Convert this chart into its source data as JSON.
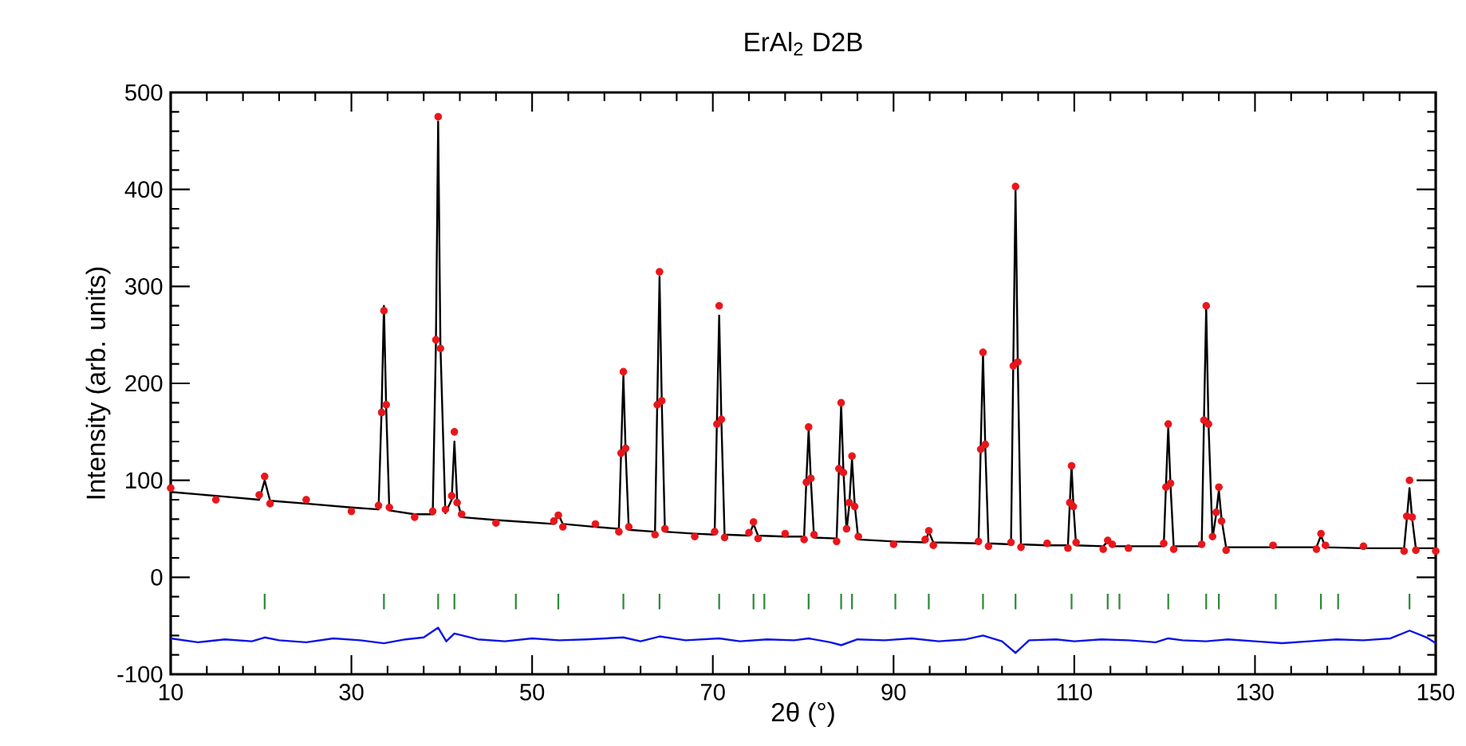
{
  "chart_data": {
    "type": "scatter",
    "title": "ErAl$_{2}$ D2B",
    "xlabel": "2θ (°)",
    "ylabel": "Intensity (arb. units)",
    "xlim": [
      10,
      150
    ],
    "ylim": [
      -100,
      500
    ],
    "xticks": [
      10,
      30,
      50,
      70,
      90,
      110,
      130,
      150
    ],
    "yticks": [
      -100,
      0,
      100,
      200,
      300,
      400,
      500
    ],
    "grid": false,
    "series": [
      {
        "marker": "circle",
        "color": "#e8161b",
        "x": [
          10,
          15,
          19.8,
          20.4,
          21,
          25,
          30,
          33,
          33.35,
          33.6,
          33.85,
          34.2,
          37,
          39,
          39.35,
          39.6,
          39.85,
          40.4,
          41.1,
          41.4,
          41.7,
          42.2,
          46,
          52.4,
          52.9,
          53.4,
          57,
          59.6,
          59.85,
          60.1,
          60.35,
          60.7,
          63.6,
          63.85,
          64.1,
          64.35,
          64.7,
          68,
          70.2,
          70.45,
          70.7,
          70.95,
          71.3,
          74,
          74.5,
          75,
          78,
          80.1,
          80.35,
          80.6,
          80.85,
          81.2,
          83.7,
          83.95,
          84.2,
          84.45,
          84.8,
          85.1,
          85.4,
          85.7,
          86.1,
          90,
          93.5,
          93.9,
          94.4,
          99.4,
          99.65,
          99.9,
          100.15,
          100.5,
          103,
          103.25,
          103.5,
          103.75,
          104.1,
          107,
          109.3,
          109.5,
          109.7,
          109.9,
          110.2,
          113.2,
          113.7,
          114.2,
          116,
          119.9,
          120.15,
          120.4,
          120.65,
          121,
          124.1,
          124.35,
          124.6,
          124.85,
          125.3,
          125.7,
          126,
          126.3,
          126.8,
          132,
          136.8,
          137.3,
          137.8,
          142,
          146.5,
          146.8,
          147.1,
          147.4,
          147.8,
          150
        ],
        "values": [
          92,
          80,
          85,
          104,
          76,
          80,
          68,
          74,
          170,
          275,
          178,
          72,
          62,
          68,
          245,
          475,
          236,
          70,
          84,
          150,
          77,
          65,
          56,
          58,
          64,
          52,
          55,
          47,
          128,
          212,
          133,
          52,
          44,
          178,
          315,
          182,
          50,
          42,
          47,
          158,
          280,
          163,
          41,
          46,
          57,
          40,
          45,
          39,
          98,
          155,
          102,
          44,
          37,
          112,
          180,
          108,
          50,
          77,
          125,
          73,
          42,
          34,
          39,
          48,
          33,
          37,
          132,
          232,
          137,
          32,
          36,
          218,
          403,
          222,
          31,
          35,
          30,
          77,
          115,
          73,
          36,
          29,
          38,
          34,
          30,
          35,
          93,
          158,
          97,
          29,
          34,
          162,
          280,
          158,
          42,
          67,
          93,
          58,
          28,
          33,
          29,
          45,
          33,
          32,
          27,
          63,
          100,
          62,
          28,
          27
        ]
      },
      {
        "type": "line",
        "color": "#000000",
        "x": [
          10,
          15,
          19.8,
          20.4,
          21,
          25,
          30,
          33,
          33.35,
          33.6,
          33.85,
          34.2,
          37,
          39,
          39.35,
          39.6,
          39.85,
          40.4,
          41.1,
          41.4,
          41.7,
          42.2,
          46,
          52.4,
          52.9,
          53.4,
          57,
          59.6,
          59.85,
          60.1,
          60.35,
          60.7,
          63.6,
          63.85,
          64.1,
          64.35,
          64.7,
          68,
          70.2,
          70.45,
          70.7,
          70.95,
          71.3,
          74,
          74.5,
          75,
          78,
          80.1,
          80.35,
          80.6,
          80.85,
          81.2,
          83.7,
          83.95,
          84.2,
          84.45,
          84.8,
          85.1,
          85.4,
          85.7,
          86.1,
          90,
          93.5,
          93.9,
          94.4,
          99.4,
          99.65,
          99.9,
          100.15,
          100.5,
          103,
          103.25,
          103.5,
          103.75,
          104.1,
          107,
          109.3,
          109.5,
          109.7,
          109.9,
          110.2,
          113.2,
          113.7,
          114.2,
          116,
          119.9,
          120.15,
          120.4,
          120.65,
          121,
          124.1,
          124.35,
          124.6,
          124.85,
          125.3,
          125.7,
          126,
          126.3,
          126.8,
          132,
          136.8,
          137.3,
          137.8,
          142,
          146.5,
          146.8,
          147.1,
          147.4,
          147.8,
          150
        ],
        "values": [
          88,
          84,
          80,
          100,
          79,
          76,
          72,
          70,
          175,
          280,
          175,
          69,
          65,
          65,
          240,
          470,
          240,
          66,
          80,
          140,
          80,
          62,
          59,
          55,
          65,
          55,
          52,
          50,
          130,
          208,
          130,
          49,
          47,
          180,
          310,
          180,
          47,
          45,
          44,
          160,
          270,
          160,
          44,
          43,
          55,
          43,
          42,
          42,
          100,
          152,
          100,
          41,
          40,
          110,
          178,
          110,
          48,
          75,
          122,
          75,
          39,
          37,
          36,
          47,
          36,
          35,
          135,
          230,
          135,
          35,
          34,
          220,
          400,
          220,
          34,
          33,
          33,
          75,
          115,
          75,
          33,
          32,
          37,
          32,
          32,
          32,
          95,
          155,
          95,
          32,
          32,
          160,
          278,
          160,
          40,
          65,
          90,
          60,
          31,
          31,
          31,
          43,
          31,
          30,
          30,
          60,
          92,
          60,
          30,
          30
        ]
      },
      {
        "type": "bar",
        "color": "#2e8b3a",
        "base": [
          -33,
          -33,
          -33,
          -33,
          -33,
          -33,
          -33,
          -33,
          -33,
          -33,
          -33,
          -33,
          -33,
          -33,
          -33,
          -33,
          -33,
          -33,
          -33,
          -33,
          -33,
          -33,
          -33,
          -33,
          -33,
          -33,
          -33,
          -33
        ],
        "x": [
          20.4,
          33.6,
          39.6,
          41.4,
          48.2,
          52.9,
          60.1,
          64.1,
          70.7,
          74.5,
          75.7,
          80.6,
          84.2,
          85.4,
          90.2,
          93.9,
          99.9,
          103.5,
          109.7,
          113.7,
          115,
          120.4,
          124.6,
          126,
          132.3,
          137.3,
          139.2,
          147.1
        ],
        "values": [
          16,
          16,
          16,
          16,
          16,
          16,
          16,
          16,
          16,
          16,
          16,
          16,
          16,
          16,
          16,
          16,
          16,
          16,
          16,
          16,
          16,
          16,
          16,
          16,
          16,
          16,
          16,
          16
        ]
      },
      {
        "type": "line",
        "color": "#0a14e6",
        "x": [
          10,
          13,
          16,
          19,
          20.4,
          22,
          25,
          28,
          31,
          33.6,
          36,
          38,
          39.6,
          40.5,
          41.4,
          44,
          47,
          50,
          53,
          56,
          60.1,
          62,
          64.1,
          67,
          70.7,
          73,
          76,
          79,
          80.6,
          83,
          84.2,
          86,
          89,
          92,
          95,
          98,
          99.9,
          102,
          103.5,
          105,
          108,
          110,
          113,
          116,
          119,
          120.4,
          122,
          124.6,
          127,
          130,
          133,
          136,
          139,
          142,
          145,
          147.1,
          149,
          150
        ],
        "values": [
          -63,
          -67,
          -64,
          -66,
          -62,
          -65,
          -67,
          -63,
          -65,
          -68,
          -64,
          -62,
          -52,
          -66,
          -58,
          -64,
          -66,
          -63,
          -65,
          -64,
          -62,
          -66,
          -61,
          -65,
          -63,
          -66,
          -64,
          -65,
          -63,
          -67,
          -70,
          -64,
          -65,
          -63,
          -66,
          -64,
          -60,
          -66,
          -78,
          -65,
          -64,
          -66,
          -64,
          -65,
          -67,
          -63,
          -65,
          -66,
          -64,
          -66,
          -68,
          -66,
          -64,
          -65,
          -63,
          -55,
          -62,
          -68
        ]
      }
    ]
  }
}
